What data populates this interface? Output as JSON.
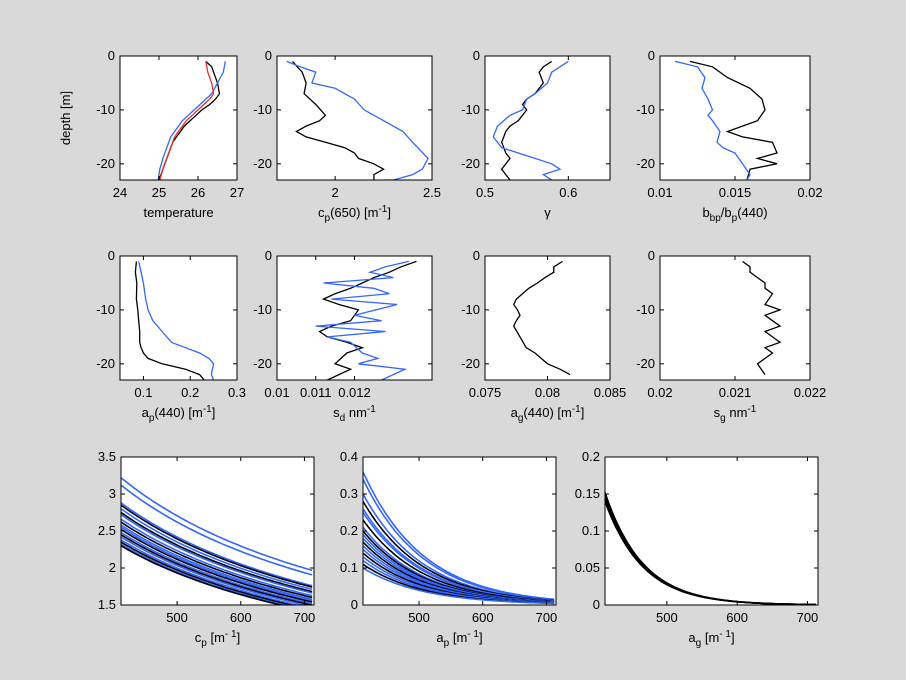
{
  "figure": {
    "background": "#d9d9d9",
    "panel_background": "#ffffff",
    "colors": {
      "black": "#000000",
      "blue": "#3366ff",
      "red": "#e03030"
    }
  },
  "chart_data": [
    {
      "id": "temp",
      "type": "line",
      "xlabel": "temperature",
      "ylabel": "depth [m]",
      "xlim": [
        24,
        27
      ],
      "ylim": [
        -23,
        0
      ],
      "xticks": [
        "24",
        "25",
        "26",
        "27"
      ],
      "yticks": [
        "0",
        "-10",
        "-20"
      ],
      "series": [
        {
          "color": "#000000",
          "x": [
            26.2,
            26.35,
            26.4,
            26.5,
            26.55,
            26.45,
            26.3,
            26.1,
            25.95,
            25.8,
            25.65,
            25.55,
            25.45,
            25.35,
            25.25,
            25.15,
            25.05,
            25.0
          ],
          "y": [
            -1,
            -2,
            -3,
            -5,
            -7,
            -8,
            -9,
            -10,
            -11,
            -12,
            -13,
            -14,
            -15,
            -16,
            -18,
            -20,
            -22,
            -23
          ]
        },
        {
          "color": "#3366ff",
          "x": [
            26.7,
            26.65,
            26.5,
            26.35,
            26.2,
            26.05,
            25.9,
            25.75,
            25.6,
            25.5,
            25.4,
            25.3,
            25.2,
            25.1,
            25.02,
            24.98
          ],
          "y": [
            -1,
            -3,
            -5,
            -7,
            -8,
            -9,
            -10,
            -11,
            -12,
            -13,
            -14,
            -15,
            -17,
            -19,
            -21,
            -23
          ]
        },
        {
          "color": "#e03030",
          "x": [
            26.2,
            26.25,
            26.35,
            26.4,
            26.3,
            26.15,
            26.0,
            25.85,
            25.7,
            25.6,
            25.5,
            25.4,
            25.3,
            25.2,
            25.1,
            25.02
          ],
          "y": [
            -1,
            -3,
            -5,
            -7,
            -8,
            -9,
            -10,
            -11,
            -12,
            -13,
            -14,
            -15,
            -17,
            -19,
            -21,
            -23
          ]
        }
      ]
    },
    {
      "id": "cp650",
      "type": "line",
      "xlabel": "c",
      "xlabel_sub": "p",
      "xlabel_rest": "(650) [m",
      "xlabel_sup": "-1",
      "xlabel_end": "]",
      "xlim": [
        1.7,
        2.5
      ],
      "ylim": [
        -23,
        0
      ],
      "xticks": [
        "2",
        "2.5"
      ],
      "yticks": [
        "0",
        "-10",
        "-20"
      ],
      "series": [
        {
          "color": "#000000",
          "x": [
            1.78,
            1.83,
            1.85,
            1.84,
            1.9,
            1.95,
            1.92,
            1.85,
            1.8,
            1.85,
            1.95,
            2.05,
            2.1,
            2.12,
            2.2,
            2.25,
            2.2,
            2.2
          ],
          "y": [
            -1,
            -3,
            -5,
            -7,
            -9,
            -11,
            -12,
            -13,
            -14,
            -15,
            -16,
            -17,
            -18,
            -19,
            -20,
            -21,
            -22,
            -23
          ]
        },
        {
          "color": "#3366ff",
          "x": [
            1.75,
            1.82,
            1.9,
            1.88,
            2.0,
            2.1,
            2.15,
            2.2,
            2.3,
            2.35,
            2.4,
            2.48,
            2.45,
            2.4,
            2.3,
            2.25
          ],
          "y": [
            -1,
            -2,
            -3,
            -5,
            -6,
            -8,
            -10,
            -11,
            -13,
            -14,
            -16,
            -19,
            -21,
            -22,
            -23,
            -23
          ]
        }
      ]
    },
    {
      "id": "gamma",
      "type": "line",
      "xlabel": "γ",
      "xlim": [
        0.5,
        0.65
      ],
      "ylim": [
        -23,
        0
      ],
      "xticks": [
        "0.5",
        "0.6"
      ],
      "yticks": [
        "0",
        "-10",
        "-20"
      ],
      "series": [
        {
          "color": "#000000",
          "x": [
            0.58,
            0.57,
            0.565,
            0.57,
            0.56,
            0.55,
            0.545,
            0.55,
            0.54,
            0.53,
            0.525,
            0.52,
            0.525,
            0.53,
            0.52,
            0.525,
            0.53
          ],
          "y": [
            -1,
            -2,
            -3,
            -5,
            -7,
            -8,
            -9,
            -10,
            -12,
            -13,
            -14,
            -16,
            -18,
            -19,
            -21,
            -22,
            -23
          ]
        },
        {
          "color": "#3366ff",
          "x": [
            0.6,
            0.59,
            0.58,
            0.575,
            0.56,
            0.55,
            0.545,
            0.53,
            0.515,
            0.51,
            0.52,
            0.54,
            0.56,
            0.58,
            0.59,
            0.57,
            0.58
          ],
          "y": [
            -1,
            -2,
            -3,
            -5,
            -7,
            -8,
            -10,
            -11,
            -13,
            -15,
            -17,
            -18,
            -19,
            -20,
            -21,
            -22,
            -23
          ]
        }
      ]
    },
    {
      "id": "bbp",
      "type": "line",
      "xlabel": "b",
      "xlabel_sub": "bp",
      "xlabel_rest": "/b",
      "xlabel_sub2": "p",
      "xlabel_end": "(440)",
      "xlim": [
        0.01,
        0.02
      ],
      "ylim": [
        -23,
        0
      ],
      "xticks": [
        "0.01",
        "0.015",
        "0.02"
      ],
      "yticks": [
        "0",
        "-10",
        "-20"
      ],
      "series": [
        {
          "color": "#000000",
          "x": [
            0.012,
            0.0135,
            0.0145,
            0.016,
            0.0168,
            0.017,
            0.0165,
            0.0155,
            0.0145,
            0.0155,
            0.0175,
            0.0178,
            0.0165,
            0.0178,
            0.016,
            0.0158
          ],
          "y": [
            -1,
            -2,
            -4,
            -6,
            -8,
            -10,
            -12,
            -13,
            -14,
            -15,
            -16,
            -18,
            -19,
            -20,
            -21,
            -23
          ]
        },
        {
          "color": "#3366ff",
          "x": [
            0.011,
            0.0125,
            0.013,
            0.0128,
            0.0132,
            0.0135,
            0.0132,
            0.0135,
            0.014,
            0.0138,
            0.0142,
            0.015,
            0.0155,
            0.016,
            0.0158
          ],
          "y": [
            -1,
            -2,
            -4,
            -6,
            -8,
            -10,
            -11,
            -12,
            -14,
            -16,
            -17,
            -18,
            -20,
            -22,
            -23
          ]
        }
      ]
    },
    {
      "id": "ap440",
      "type": "line",
      "xlabel": "a",
      "xlabel_sub": "p",
      "xlabel_rest": "(440) [m",
      "xlabel_sup": "-1",
      "xlabel_end": "]",
      "xlim": [
        0.05,
        0.3
      ],
      "ylim": [
        -23,
        0
      ],
      "xticks": [
        "0.1",
        "0.2",
        "0.3"
      ],
      "yticks": [
        "0",
        "-10",
        "-20"
      ],
      "series": [
        {
          "color": "#000000",
          "x": [
            0.085,
            0.083,
            0.086,
            0.085,
            0.088,
            0.09,
            0.092,
            0.092,
            0.095,
            0.1,
            0.11,
            0.14,
            0.19,
            0.22,
            0.23
          ],
          "y": [
            -1,
            -3,
            -5,
            -8,
            -10,
            -12,
            -14,
            -16,
            -17,
            -18,
            -19,
            -20,
            -21,
            -22,
            -23
          ]
        },
        {
          "color": "#3366ff",
          "x": [
            0.09,
            0.095,
            0.1,
            0.105,
            0.11,
            0.12,
            0.14,
            0.16,
            0.19,
            0.22,
            0.24,
            0.25,
            0.245,
            0.25
          ],
          "y": [
            -1,
            -3,
            -5,
            -8,
            -10,
            -12,
            -14,
            -16,
            -17,
            -18,
            -19,
            -20,
            -22,
            -23
          ]
        }
      ]
    },
    {
      "id": "sd",
      "type": "line",
      "xlabel": "s",
      "xlabel_sub": "d",
      "xlabel_rest": " nm",
      "xlabel_sup": "-1",
      "xlim": [
        0.01,
        0.014
      ],
      "ylim": [
        -23,
        0
      ],
      "xticks": [
        "0.01",
        "0.011",
        "0.012"
      ],
      "yticks": [
        "0",
        "-10",
        "-20"
      ],
      "series": [
        {
          "color": "#000000",
          "x": [
            0.0136,
            0.0132,
            0.0129,
            0.0125,
            0.0122,
            0.0119,
            0.0115,
            0.0112,
            0.0116,
            0.0121,
            0.0119,
            0.0114,
            0.0111,
            0.0113,
            0.0118,
            0.0122,
            0.0118,
            0.0115,
            0.0119,
            0.0113
          ],
          "y": [
            -1,
            -2,
            -3,
            -4,
            -5,
            -6,
            -7,
            -8,
            -9,
            -10,
            -12,
            -13,
            -14,
            -15,
            -16,
            -17,
            -18,
            -20,
            -21,
            -23
          ]
        },
        {
          "color": "#3366ff",
          "x": [
            0.0134,
            0.0128,
            0.0124,
            0.013,
            0.0112,
            0.0125,
            0.0129,
            0.0114,
            0.0131,
            0.012,
            0.0127,
            0.011,
            0.0128,
            0.0113,
            0.0119,
            0.0122,
            0.0126,
            0.0121,
            0.0133,
            0.0127
          ],
          "y": [
            -1,
            -2,
            -3,
            -4,
            -5,
            -6,
            -7,
            -8,
            -9,
            -11,
            -12,
            -13,
            -14,
            -15,
            -16,
            -18,
            -19,
            -20,
            -21,
            -23
          ]
        }
      ]
    },
    {
      "id": "ag440",
      "type": "line",
      "xlabel": "a",
      "xlabel_sub": "g",
      "xlabel_rest": "(440) [m",
      "xlabel_sup": "-1",
      "xlabel_end": "]",
      "xlim": [
        0.075,
        0.085
      ],
      "ylim": [
        -23,
        0
      ],
      "xticks": [
        "0.075",
        "0.08",
        "0.085"
      ],
      "yticks": [
        "0",
        "-10",
        "-20"
      ],
      "series": [
        {
          "color": "#000000",
          "x": [
            0.0812,
            0.0805,
            0.0805,
            0.0798,
            0.0792,
            0.0785,
            0.078,
            0.0775,
            0.0773,
            0.0776,
            0.0778,
            0.0775,
            0.0773,
            0.0778,
            0.0783,
            0.079,
            0.08,
            0.081,
            0.0818
          ],
          "y": [
            -1,
            -2,
            -3,
            -4,
            -5,
            -6,
            -7,
            -8,
            -9,
            -10,
            -11,
            -12,
            -13,
            -15,
            -17,
            -18,
            -20,
            -21,
            -22
          ]
        }
      ]
    },
    {
      "id": "sg",
      "type": "line",
      "xlabel": "s",
      "xlabel_sub": "g",
      "xlabel_rest": " nm",
      "xlabel_sup": "-1",
      "xlim": [
        0.02,
        0.022
      ],
      "ylim": [
        -23,
        0
      ],
      "xticks": [
        "0.02",
        "0.021",
        "0.022"
      ],
      "yticks": [
        "0",
        "-10",
        "-20"
      ],
      "series": [
        {
          "color": "#000000",
          "x": [
            0.0211,
            0.0212,
            0.0212,
            0.0213,
            0.0214,
            0.0214,
            0.0215,
            0.0214,
            0.0216,
            0.0214,
            0.0215,
            0.0216,
            0.0214,
            0.0215,
            0.0216,
            0.0214,
            0.0215,
            0.0214,
            0.0213,
            0.0214
          ],
          "y": [
            -1,
            -2,
            -3,
            -4,
            -5,
            -6,
            -7,
            -9,
            -10,
            -11,
            -12,
            -13,
            -14,
            -15,
            -16,
            -17,
            -18,
            -19,
            -20,
            -22
          ]
        }
      ]
    },
    {
      "id": "cp_spec",
      "type": "line",
      "family": "power",
      "xlabel": "c",
      "xlabel_sub": "p",
      "xlabel_rest": " [m",
      "xlabel_sup": "- 1",
      "xlabel_end": "]",
      "xlim": [
        412,
        715
      ],
      "ylim": [
        1.5,
        3.5
      ],
      "xticks": [
        "500",
        "600",
        "700"
      ],
      "yticks": [
        "1.5",
        "2",
        "2.5",
        "3",
        "3.5"
      ],
      "x_ref": 412,
      "exponent": 0.9,
      "curves": [
        {
          "a0": 3.22,
          "color": "#3366ff"
        },
        {
          "a0": 3.12,
          "color": "#3366ff"
        },
        {
          "a0": 2.88,
          "color": "#3366ff"
        },
        {
          "a0": 2.85,
          "color": "#000000"
        },
        {
          "a0": 2.8,
          "color": "#3366ff"
        },
        {
          "a0": 2.75,
          "color": "#000000"
        },
        {
          "a0": 2.72,
          "color": "#3366ff"
        },
        {
          "a0": 2.66,
          "color": "#3366ff"
        },
        {
          "a0": 2.62,
          "color": "#000000"
        },
        {
          "a0": 2.58,
          "color": "#3366ff"
        },
        {
          "a0": 2.55,
          "color": "#3366ff"
        },
        {
          "a0": 2.52,
          "color": "#000000"
        },
        {
          "a0": 2.48,
          "color": "#3366ff"
        },
        {
          "a0": 2.45,
          "color": "#000000"
        },
        {
          "a0": 2.42,
          "color": "#3366ff"
        },
        {
          "a0": 2.38,
          "color": "#3366ff"
        },
        {
          "a0": 2.35,
          "color": "#000000"
        },
        {
          "a0": 2.32,
          "color": "#3366ff"
        },
        {
          "a0": 2.3,
          "color": "#000000"
        }
      ]
    },
    {
      "id": "ap_spec",
      "type": "line",
      "family": "exp",
      "xlabel": "a",
      "xlabel_sub": "p",
      "xlabel_rest": " [m",
      "xlabel_sup": "- 1",
      "xlabel_end": "]",
      "xlim": [
        412,
        715
      ],
      "ylim": [
        0,
        0.4
      ],
      "xticks": [
        "500",
        "600",
        "700"
      ],
      "yticks": [
        "0",
        "0.1",
        "0.2",
        "0.3",
        "0.4"
      ],
      "x_ref": 412,
      "rate": 0.0105,
      "curves": [
        {
          "a0": 0.36,
          "color": "#3366ff"
        },
        {
          "a0": 0.34,
          "color": "#3366ff"
        },
        {
          "a0": 0.3,
          "color": "#3366ff"
        },
        {
          "a0": 0.28,
          "color": "#000000"
        },
        {
          "a0": 0.26,
          "color": "#3366ff"
        },
        {
          "a0": 0.25,
          "color": "#3366ff"
        },
        {
          "a0": 0.23,
          "color": "#000000"
        },
        {
          "a0": 0.21,
          "color": "#3366ff"
        },
        {
          "a0": 0.2,
          "color": "#000000"
        },
        {
          "a0": 0.19,
          "color": "#3366ff"
        },
        {
          "a0": 0.18,
          "color": "#3366ff"
        },
        {
          "a0": 0.17,
          "color": "#000000"
        },
        {
          "a0": 0.16,
          "color": "#3366ff"
        },
        {
          "a0": 0.15,
          "color": "#3366ff"
        },
        {
          "a0": 0.14,
          "color": "#000000"
        },
        {
          "a0": 0.13,
          "color": "#3366ff"
        },
        {
          "a0": 0.12,
          "color": "#3366ff"
        },
        {
          "a0": 0.11,
          "color": "#000000"
        },
        {
          "a0": 0.1,
          "color": "#3366ff"
        }
      ]
    },
    {
      "id": "ag_spec",
      "type": "line",
      "family": "exp",
      "xlabel": "a",
      "xlabel_sub": "g",
      "xlabel_rest": " [m",
      "xlabel_sup": "- 1",
      "xlabel_end": "]",
      "xlim": [
        412,
        715
      ],
      "ylim": [
        0,
        0.2
      ],
      "xticks": [
        "500",
        "600",
        "700"
      ],
      "yticks": [
        "0",
        "0.05",
        "0.1",
        "0.15",
        "0.2"
      ],
      "x_ref": 412,
      "rate": 0.0185,
      "curves": [
        {
          "a0": 0.152,
          "color": "#000000"
        },
        {
          "a0": 0.147,
          "color": "#000000"
        },
        {
          "a0": 0.143,
          "color": "#000000"
        },
        {
          "a0": 0.14,
          "color": "#000000"
        }
      ]
    }
  ]
}
